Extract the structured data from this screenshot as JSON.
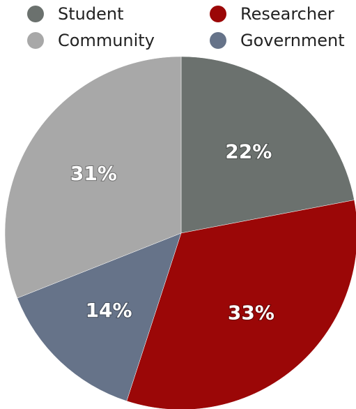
{
  "chart_data": {
    "type": "pie",
    "categories": [
      "Student",
      "Researcher",
      "Government",
      "Community"
    ],
    "values": [
      22,
      33,
      14,
      31
    ],
    "value_labels": [
      "22%",
      "33%",
      "14%",
      "31%"
    ],
    "colors": {
      "Student": "#6b716e",
      "Researcher": "#9b0707",
      "Community": "#a8a8a8",
      "Government": "#667389"
    },
    "order": [
      "Student",
      "Researcher",
      "Community",
      "Government"
    ],
    "legend": {
      "placement": "top",
      "entries": [
        "Student",
        "Researcher",
        "Community",
        "Government"
      ]
    }
  }
}
